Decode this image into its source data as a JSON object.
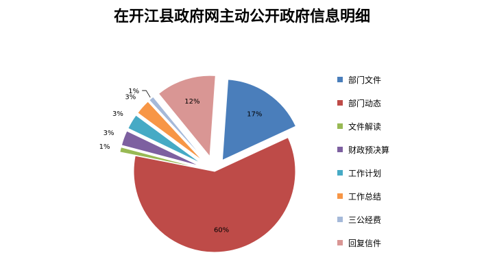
{
  "chart_data": {
    "type": "pie",
    "title": "在开江县政府网主动公开政府信息明细",
    "categories": [
      "部门文件",
      "部门动态",
      "文件解读",
      "财政预决算",
      "工作计划",
      "工作总结",
      "三公经费",
      "回复信件"
    ],
    "values": [
      17,
      60,
      1,
      3,
      3,
      3,
      1,
      12
    ],
    "value_labels": [
      "17%",
      "60%",
      "1%",
      "3%",
      "3%",
      "3%",
      "1%",
      "12%"
    ],
    "colors": [
      "#4A7EBB",
      "#BE4B48",
      "#98B954",
      "#7D60A0",
      "#46AAC5",
      "#F79646",
      "#A5B9D9",
      "#D99694"
    ],
    "legend_position": "right",
    "exploded": true
  }
}
